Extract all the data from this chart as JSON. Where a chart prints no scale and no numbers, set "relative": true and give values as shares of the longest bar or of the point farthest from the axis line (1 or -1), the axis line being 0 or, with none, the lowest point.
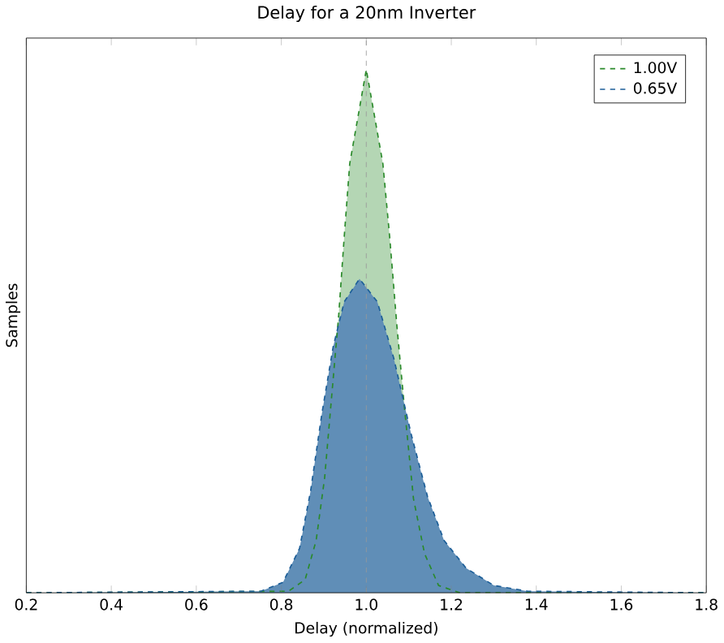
{
  "chart_data": {
    "type": "area",
    "title": "Delay for a 20nm Inverter",
    "xlabel": "Delay (normalized)",
    "ylabel": "Samples",
    "relative": true,
    "xlim": [
      0.2,
      1.8
    ],
    "xticks": [
      0.2,
      0.4,
      0.6,
      0.8,
      {
        "value": 1.0,
        "label": "1.0"
      },
      1.2,
      1.4,
      1.6,
      1.8
    ],
    "tick_labels": "x",
    "legend": "top right",
    "line_style": "dashed",
    "ref_lines": [
      {
        "axis": "x",
        "value": 1.0,
        "color": "#999999",
        "line_style": "dashed"
      }
    ],
    "series": [
      {
        "name": "1.00V",
        "color": "#2a8a2a",
        "x": [
          0.2,
          0.817,
          0.856,
          0.882,
          0.902,
          0.919,
          0.935,
          0.948,
          0.961,
          1.0,
          1.039,
          1.055,
          1.072,
          1.089,
          1.111,
          1.137,
          1.17,
          1.22,
          1.8
        ],
        "values": [
          0,
          0.003,
          0.025,
          0.1,
          0.22,
          0.38,
          0.53,
          0.68,
          0.82,
          1,
          0.82,
          0.68,
          0.51,
          0.36,
          0.18,
          0.075,
          0.014,
          0,
          0
        ]
      },
      {
        "name": "0.65V",
        "color": "#1c5e98",
        "x": [
          0.2,
          0.752,
          0.804,
          0.843,
          0.869,
          0.895,
          0.922,
          0.948,
          0.984,
          1.026,
          1.065,
          1.105,
          1.144,
          1.183,
          1.235,
          1.3,
          1.38,
          1.8
        ],
        "values": [
          0,
          0.003,
          0.02,
          0.085,
          0.195,
          0.34,
          0.47,
          0.556,
          0.6,
          0.556,
          0.447,
          0.305,
          0.184,
          0.1,
          0.047,
          0.014,
          0.003,
          0
        ]
      }
    ]
  }
}
